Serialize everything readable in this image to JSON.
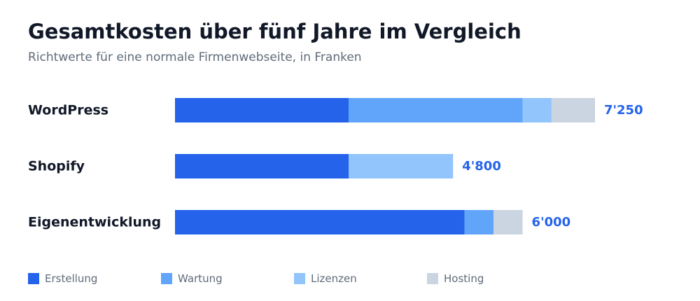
{
  "chart_data": {
    "type": "bar",
    "orientation": "horizontal",
    "stacked": true,
    "title": "Gesamtkosten über fünf Jahre im Vergleich",
    "subtitle": "Richtwerte für eine normale Firmenwebseite, in Franken",
    "categories": [
      "WordPress",
      "Shopify",
      "Eigenentwicklung"
    ],
    "series": [
      {
        "name": "Erstellung",
        "color": "#2563eb",
        "values": [
          3000,
          3000,
          5000
        ]
      },
      {
        "name": "Wartung",
        "color": "#60a5fa",
        "values": [
          3000,
          0,
          500
        ]
      },
      {
        "name": "Lizenzen",
        "color": "#93c5fd",
        "values": [
          500,
          1800,
          0
        ]
      },
      {
        "name": "Hosting",
        "color": "#cbd5e1",
        "values": [
          750,
          0,
          500
        ]
      }
    ],
    "totals": [
      "7'250",
      "4'800",
      "6'000"
    ],
    "xlim": [
      0,
      7250
    ],
    "grid": false,
    "legend_position": "bottom"
  }
}
